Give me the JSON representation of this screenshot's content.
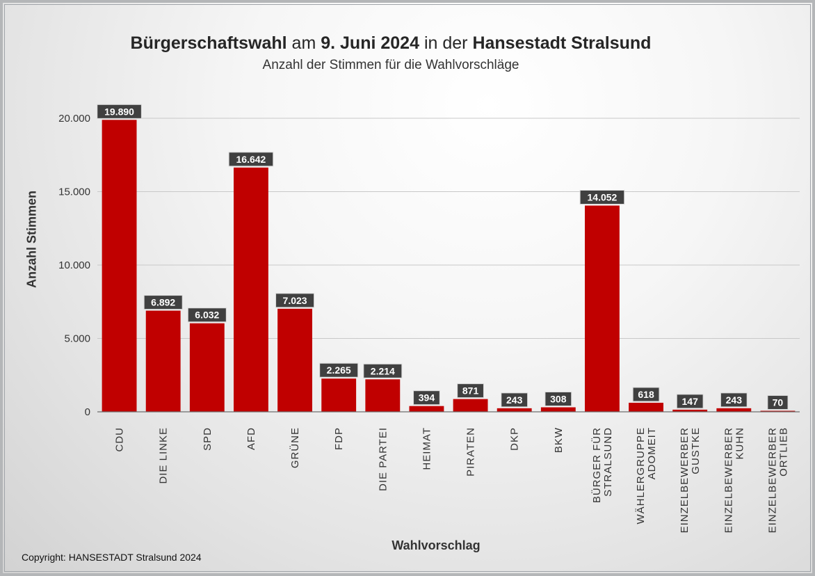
{
  "title": {
    "part1": "Bürgerschaftswahl",
    "part2": "am",
    "part3": "9. Juni 2024",
    "part4": "in der",
    "part5": "Hansestadt Stralsund"
  },
  "subtitle": "Anzahl der Stimmen für die Wahlvorschläge",
  "copyright": "Copyright: HANSESTADT Stralsund 2024",
  "colors": {
    "bar": "#c00000",
    "label_bg": "#404040",
    "label_text": "#ffffff",
    "grid": "#c8c8c8",
    "axis": "#6e6e6e"
  },
  "chart_data": {
    "type": "bar",
    "title": "Bürgerschaftswahl am 9. Juni 2024 in der Hansestadt Stralsund",
    "subtitle": "Anzahl der Stimmen für die Wahlvorschläge",
    "xlabel": "Wahlvorschlag",
    "ylabel": "Anzahl Stimmen",
    "ylim": [
      0,
      20000
    ],
    "yticks": [
      0,
      5000,
      10000,
      15000,
      20000
    ],
    "ytick_labels": [
      "0",
      "5.000",
      "10.000",
      "15.000",
      "20.000"
    ],
    "grid": true,
    "legend": "none",
    "categories": [
      [
        "CDU"
      ],
      [
        "DIE LINKE"
      ],
      [
        "SPD"
      ],
      [
        "AFD"
      ],
      [
        "GRÜNE"
      ],
      [
        "FDP"
      ],
      [
        "DIE PARTEI"
      ],
      [
        "HEIMAT"
      ],
      [
        "PIRATEN"
      ],
      [
        "DKP"
      ],
      [
        "BKW"
      ],
      [
        "BÜRGER FÜR",
        "STRALSUND"
      ],
      [
        "WÄHLERGRUPPE",
        "ADOMEIT"
      ],
      [
        "EINZELBEWERBER",
        "GUSTKE"
      ],
      [
        "EINZELBEWERBER",
        "KUHN"
      ],
      [
        "EINZELBEWERBER",
        "ORTLIEB"
      ]
    ],
    "values": [
      19890,
      6892,
      6032,
      16642,
      7023,
      2265,
      2214,
      394,
      871,
      243,
      308,
      14052,
      618,
      147,
      243,
      70
    ],
    "data_labels": [
      "19.890",
      "6.892",
      "6.032",
      "16.642",
      "7.023",
      "2.265",
      "2.214",
      "394",
      "871",
      "243",
      "308",
      "14.052",
      "618",
      "147",
      "243",
      "70"
    ]
  }
}
